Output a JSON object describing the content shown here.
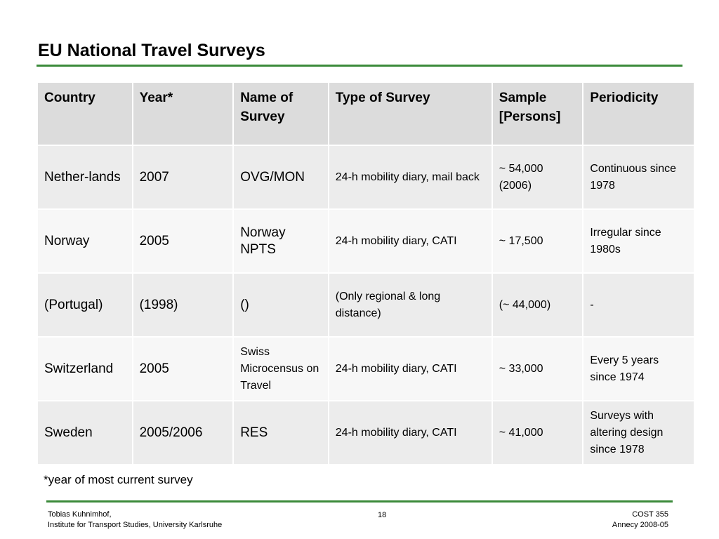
{
  "title": "EU National Travel Surveys",
  "table": {
    "headers": [
      "Country",
      "Year*",
      "Name of Survey",
      "Type of Survey",
      "Sample [Persons]",
      "Periodicity"
    ],
    "rows": [
      [
        "Nether-lands",
        "2007",
        "OVG/MON",
        "24-h mobility diary, mail back",
        "~ 54,000 (2006)",
        "Continuous since 1978"
      ],
      [
        "Norway",
        "2005",
        "Norway NPTS",
        "24-h mobility diary, CATI",
        "~ 17,500",
        "Irregular since 1980s"
      ],
      [
        "(Portugal)",
        "(1998)",
        "()",
        "(Only regional & long distance)",
        "(~ 44,000)",
        "-"
      ],
      [
        "Switzerland",
        "2005",
        "Swiss Microcensus on Travel",
        "24-h mobility diary, CATI",
        "~ 33,000",
        "Every 5 years since 1974"
      ],
      [
        "Sweden",
        "2005/2006",
        "RES",
        "24-h mobility diary, CATI",
        "~ 41,000",
        "Surveys with altering design since 1978"
      ]
    ]
  },
  "footnote": "*year of most current survey",
  "footer": {
    "author": "Tobias Kuhnimhof,",
    "institute": "Institute for Transport Studies, University Karlsruhe",
    "page_number": "18",
    "project": "COST 355",
    "event": "Annecy 2008-05"
  },
  "colors": {
    "accent_rule": "#3b8a3a",
    "header_bg": "#dcdcdc",
    "row_bg_odd": "#ececec",
    "row_bg_even": "#f7f7f7"
  }
}
